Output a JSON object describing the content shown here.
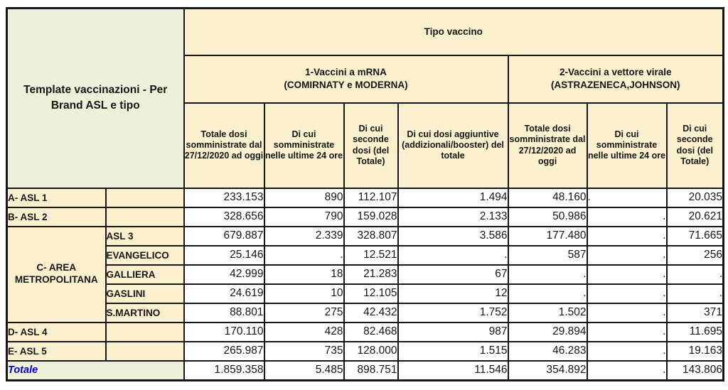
{
  "chart_data": {
    "type": "table",
    "title": "Template vaccinazioni - Per Brand ASL e tipo",
    "top_header": "Tipo vaccino",
    "groups": [
      {
        "label": "1-Vaccini a mRNA\n(COMIRNATY e MODERNA)",
        "span": 4
      },
      {
        "label": "2-Vaccini a vettore virale\n(ASTRAZENECA,JOHNSON)",
        "span": 3
      }
    ],
    "columns": [
      "Totale dosi somministrate dal 27/12/2020 ad oggi",
      "Di cui somministrate nelle ultime 24 ore",
      "Di cui seconde dosi (del Totale)",
      "Di cui dosi aggiuntive (addizionali/booster) del totale",
      "Totale dosi somministrate dal 27/12/2020 ad oggi",
      "Di cui somministrate nelle ultime 24 ore",
      "Di cui seconde dosi (del Totale)"
    ],
    "rows": [
      {
        "label": "A- ASL 1",
        "sub": "",
        "values": [
          "233.153",
          "890",
          "112.107",
          "1.494",
          "48.160",
          ".",
          "20.035"
        ],
        "left_align_cols": [
          5
        ]
      },
      {
        "label": "B- ASL 2",
        "sub": "",
        "values": [
          "328.656",
          "790",
          "159.028",
          "2.133",
          "50.986",
          ".",
          "20.621"
        ]
      },
      {
        "label": "C- AREA METROPOLITANA",
        "label_rowspan": 5,
        "sub": "ASL 3",
        "values": [
          "679.887",
          "2.339",
          "328.807",
          "3.586",
          "177.480",
          ".",
          "71.665"
        ]
      },
      {
        "sub": "EVANGELICO",
        "values": [
          "25.146",
          ".",
          "12.521",
          ".",
          "587",
          ".",
          "256"
        ]
      },
      {
        "sub": "GALLIERA",
        "values": [
          "42.999",
          "18",
          "21.283",
          "67",
          ".",
          ".",
          "."
        ]
      },
      {
        "sub": "GASLINI",
        "values": [
          "24.619",
          "10",
          "12.105",
          "12",
          ".",
          ".",
          "."
        ]
      },
      {
        "sub": "S.MARTINO",
        "values": [
          "88.801",
          "275",
          "42.432",
          "1.752",
          "1.502",
          ".",
          "371"
        ]
      },
      {
        "label": "D- ASL 4",
        "sub": "",
        "values": [
          "170.110",
          "428",
          "82.468",
          "987",
          "29.894",
          ".",
          "11.695"
        ]
      },
      {
        "label": "E- ASL 5",
        "sub": "",
        "values": [
          "265.987",
          "735",
          "128.000",
          "1.515",
          "46.283",
          ".",
          "19.163"
        ]
      },
      {
        "label": "Totale",
        "total": true,
        "values": [
          "1.859.358",
          "5.485",
          "898.751",
          "11.546",
          "354.892",
          ".",
          "143.806"
        ]
      }
    ],
    "colors": {
      "header_yellow": "#FAF0CD",
      "corner_cream": "#F0EFDA",
      "border": "#161616",
      "total_blue": "#0000CD",
      "cell_white": "#FFFFFF"
    }
  }
}
